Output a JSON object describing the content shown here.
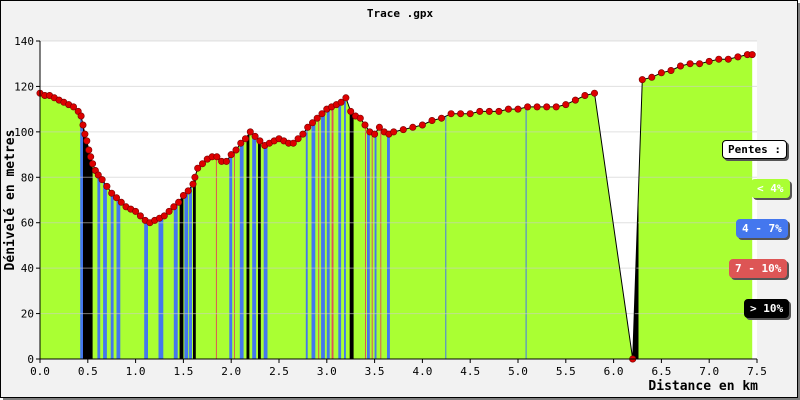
{
  "chart_data": {
    "type": "area",
    "title": "Trace .gpx",
    "xlabel": "Distance en km",
    "ylabel": "Dénivelé en metres",
    "xlim": [
      0,
      7.5
    ],
    "ylim": [
      0,
      140
    ],
    "x_ticks": [
      "0.0",
      "0.5",
      "1.0",
      "1.5",
      "2.0",
      "2.5",
      "3.0",
      "3.5",
      "4.0",
      "4.5",
      "5.0",
      "5.5",
      "6.0",
      "6.5",
      "7.0",
      "7.5"
    ],
    "y_ticks": [
      "0",
      "20",
      "40",
      "60",
      "80",
      "100",
      "120",
      "140"
    ],
    "grid": true,
    "legend_title": "Pentes :",
    "legend": [
      {
        "label": "< 4%",
        "color": "#aaff33",
        "text_color": "#ffffff"
      },
      {
        "label": "4 - 7%",
        "color": "#4477ee",
        "text_color": "#ffffff"
      },
      {
        "label": "7 - 10%",
        "color": "#dd5555",
        "text_color": "#ffffff"
      },
      {
        "label": "> 10%",
        "color": "#000000",
        "text_color": "#ffffff"
      }
    ],
    "colors": {
      "green": "#aaff33",
      "blue": "#4477ee",
      "red": "#dd5555",
      "black": "#000000",
      "point": "#dd0000",
      "line": "#000000"
    },
    "points": [
      [
        0.0,
        117
      ],
      [
        0.05,
        116
      ],
      [
        0.1,
        116
      ],
      [
        0.15,
        115
      ],
      [
        0.2,
        114
      ],
      [
        0.25,
        113
      ],
      [
        0.3,
        112
      ],
      [
        0.35,
        111
      ],
      [
        0.4,
        109
      ],
      [
        0.43,
        107
      ],
      [
        0.45,
        103
      ],
      [
        0.47,
        99
      ],
      [
        0.49,
        96
      ],
      [
        0.51,
        92
      ],
      [
        0.53,
        89
      ],
      [
        0.55,
        86
      ],
      [
        0.58,
        83
      ],
      [
        0.61,
        81
      ],
      [
        0.65,
        79
      ],
      [
        0.7,
        76
      ],
      [
        0.75,
        73
      ],
      [
        0.8,
        71
      ],
      [
        0.85,
        69
      ],
      [
        0.9,
        67
      ],
      [
        0.95,
        66
      ],
      [
        1.0,
        65
      ],
      [
        1.05,
        63
      ],
      [
        1.1,
        61
      ],
      [
        1.15,
        60
      ],
      [
        1.2,
        61
      ],
      [
        1.25,
        62
      ],
      [
        1.3,
        63
      ],
      [
        1.35,
        65
      ],
      [
        1.4,
        67
      ],
      [
        1.45,
        69
      ],
      [
        1.5,
        72
      ],
      [
        1.55,
        74
      ],
      [
        1.6,
        77
      ],
      [
        1.62,
        80
      ],
      [
        1.65,
        84
      ],
      [
        1.7,
        86
      ],
      [
        1.75,
        88
      ],
      [
        1.8,
        89
      ],
      [
        1.85,
        89
      ],
      [
        1.9,
        87
      ],
      [
        1.95,
        87
      ],
      [
        2.0,
        90
      ],
      [
        2.05,
        92
      ],
      [
        2.1,
        95
      ],
      [
        2.15,
        97
      ],
      [
        2.2,
        100
      ],
      [
        2.25,
        98
      ],
      [
        2.3,
        96
      ],
      [
        2.35,
        94
      ],
      [
        2.4,
        95
      ],
      [
        2.45,
        96
      ],
      [
        2.5,
        97
      ],
      [
        2.55,
        96
      ],
      [
        2.6,
        95
      ],
      [
        2.65,
        95
      ],
      [
        2.7,
        97
      ],
      [
        2.75,
        99
      ],
      [
        2.8,
        102
      ],
      [
        2.85,
        104
      ],
      [
        2.9,
        106
      ],
      [
        2.95,
        108
      ],
      [
        3.0,
        110
      ],
      [
        3.05,
        111
      ],
      [
        3.1,
        112
      ],
      [
        3.15,
        113
      ],
      [
        3.2,
        115
      ],
      [
        3.25,
        109
      ],
      [
        3.3,
        107
      ],
      [
        3.35,
        106
      ],
      [
        3.4,
        103
      ],
      [
        3.45,
        100
      ],
      [
        3.5,
        99
      ],
      [
        3.55,
        102
      ],
      [
        3.6,
        100
      ],
      [
        3.65,
        99
      ],
      [
        3.7,
        100
      ],
      [
        3.8,
        101
      ],
      [
        3.9,
        102
      ],
      [
        4.0,
        103
      ],
      [
        4.1,
        105
      ],
      [
        4.2,
        106
      ],
      [
        4.3,
        108
      ],
      [
        4.4,
        108
      ],
      [
        4.5,
        108
      ],
      [
        4.6,
        109
      ],
      [
        4.7,
        109
      ],
      [
        4.8,
        109
      ],
      [
        4.9,
        110
      ],
      [
        5.0,
        110
      ],
      [
        5.1,
        111
      ],
      [
        5.2,
        111
      ],
      [
        5.3,
        111
      ],
      [
        5.4,
        111
      ],
      [
        5.5,
        112
      ],
      [
        5.6,
        114
      ],
      [
        5.7,
        116
      ],
      [
        5.8,
        117
      ],
      [
        6.2,
        0
      ],
      [
        6.3,
        123
      ],
      [
        6.4,
        124
      ],
      [
        6.5,
        126
      ],
      [
        6.6,
        127
      ],
      [
        6.7,
        129
      ],
      [
        6.8,
        130
      ],
      [
        6.9,
        130
      ],
      [
        7.0,
        131
      ],
      [
        7.1,
        132
      ],
      [
        7.2,
        132
      ],
      [
        7.3,
        133
      ],
      [
        7.4,
        134
      ],
      [
        7.45,
        134
      ]
    ],
    "slope_stripes": [
      {
        "x": 0.42,
        "w": 0.03,
        "color": "blue"
      },
      {
        "x": 0.45,
        "w": 0.1,
        "color": "black"
      },
      {
        "x": 0.6,
        "w": 0.03,
        "color": "blue"
      },
      {
        "x": 0.66,
        "w": 0.04,
        "color": "blue"
      },
      {
        "x": 0.74,
        "w": 0.03,
        "color": "blue"
      },
      {
        "x": 0.8,
        "w": 0.04,
        "color": "blue"
      },
      {
        "x": 1.09,
        "w": 0.04,
        "color": "blue"
      },
      {
        "x": 1.24,
        "w": 0.05,
        "color": "blue"
      },
      {
        "x": 1.4,
        "w": 0.04,
        "color": "blue"
      },
      {
        "x": 1.46,
        "w": 0.04,
        "color": "black"
      },
      {
        "x": 1.51,
        "w": 0.04,
        "color": "blue"
      },
      {
        "x": 1.56,
        "w": 0.03,
        "color": "blue"
      },
      {
        "x": 1.6,
        "w": 0.03,
        "color": "black"
      },
      {
        "x": 1.84,
        "w": 0.01,
        "color": "red"
      },
      {
        "x": 1.98,
        "w": 0.03,
        "color": "blue"
      },
      {
        "x": 2.03,
        "w": 0.01,
        "color": "red"
      },
      {
        "x": 2.09,
        "w": 0.04,
        "color": "blue"
      },
      {
        "x": 2.16,
        "w": 0.03,
        "color": "black"
      },
      {
        "x": 2.22,
        "w": 0.04,
        "color": "blue"
      },
      {
        "x": 2.28,
        "w": 0.03,
        "color": "black"
      },
      {
        "x": 2.34,
        "w": 0.04,
        "color": "blue"
      },
      {
        "x": 2.78,
        "w": 0.02,
        "color": "blue"
      },
      {
        "x": 2.84,
        "w": 0.04,
        "color": "blue"
      },
      {
        "x": 2.91,
        "w": 0.01,
        "color": "red"
      },
      {
        "x": 2.94,
        "w": 0.04,
        "color": "blue"
      },
      {
        "x": 3.0,
        "w": 0.03,
        "color": "blue"
      },
      {
        "x": 3.05,
        "w": 0.02,
        "color": "red"
      },
      {
        "x": 3.12,
        "w": 0.03,
        "color": "blue"
      },
      {
        "x": 3.18,
        "w": 0.02,
        "color": "blue"
      },
      {
        "x": 3.24,
        "w": 0.04,
        "color": "black"
      },
      {
        "x": 3.4,
        "w": 0.01,
        "color": "red"
      },
      {
        "x": 3.42,
        "w": 0.03,
        "color": "blue"
      },
      {
        "x": 3.47,
        "w": 0.01,
        "color": "red"
      },
      {
        "x": 3.5,
        "w": 0.02,
        "color": "blue"
      },
      {
        "x": 3.56,
        "w": 0.01,
        "color": "red"
      },
      {
        "x": 3.63,
        "w": 0.03,
        "color": "blue"
      },
      {
        "x": 4.24,
        "w": 0.01,
        "color": "blue"
      },
      {
        "x": 5.08,
        "w": 0.01,
        "color": "blue"
      },
      {
        "x": 6.2,
        "w": 0.06,
        "color": "black"
      }
    ]
  }
}
